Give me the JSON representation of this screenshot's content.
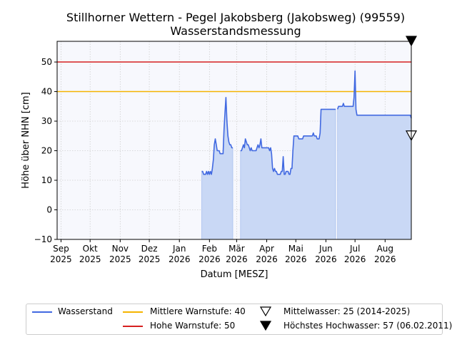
{
  "chart_data": {
    "type": "line",
    "title": "Stillhorner Wettern - Pegel Jakobsberg (Jakobsweg) (99559)",
    "subtitle": "Wasserstandsmessung",
    "xlabel": "Datum [MESZ]",
    "ylabel": "Höhe über NHN [cm]",
    "ylim": [
      -10,
      57
    ],
    "xlim": [
      "2025-08-28",
      "2026-08-28"
    ],
    "grid": true,
    "legend_position": "bottom",
    "y_ticks": [
      "−10",
      "0",
      "10",
      "20",
      "30",
      "40",
      "50"
    ],
    "x_ticks": [
      {
        "date": "2025-09-01",
        "month": "Sep",
        "year": "2025"
      },
      {
        "date": "2025-10-01",
        "month": "Okt",
        "year": "2025"
      },
      {
        "date": "2025-11-01",
        "month": "Nov",
        "year": "2025"
      },
      {
        "date": "2025-12-01",
        "month": "Dez",
        "year": "2025"
      },
      {
        "date": "2026-01-01",
        "month": "Jan",
        "year": "2026"
      },
      {
        "date": "2026-02-01",
        "month": "Feb",
        "year": "2026"
      },
      {
        "date": "2026-03-01",
        "month": "Mär",
        "year": "2026"
      },
      {
        "date": "2026-04-01",
        "month": "Apr",
        "year": "2026"
      },
      {
        "date": "2026-05-01",
        "month": "Mai",
        "year": "2026"
      },
      {
        "date": "2026-06-01",
        "month": "Jun",
        "year": "2026"
      },
      {
        "date": "2026-07-01",
        "month": "Jul",
        "year": "2026"
      },
      {
        "date": "2026-08-01",
        "month": "Aug",
        "year": "2026"
      }
    ],
    "series": [
      {
        "name": "Wasserstand",
        "color": "#4169e1",
        "fill": "#c9d8f5",
        "segments": [
          [
            [
              "2026-01-24",
              13
            ],
            [
              "2026-01-25",
              13
            ],
            [
              "2026-01-26",
              12
            ],
            [
              "2026-01-27",
              12
            ],
            [
              "2026-01-28",
              12
            ],
            [
              "2026-01-29",
              13
            ],
            [
              "2026-01-30",
              12
            ],
            [
              "2026-01-31",
              13
            ],
            [
              "2026-02-01",
              12
            ],
            [
              "2026-02-02",
              13
            ],
            [
              "2026-02-03",
              12
            ],
            [
              "2026-02-04",
              14
            ],
            [
              "2026-02-05",
              17
            ],
            [
              "2026-02-06",
              22
            ],
            [
              "2026-02-07",
              24
            ],
            [
              "2026-02-08",
              22
            ],
            [
              "2026-02-09",
              20
            ],
            [
              "2026-02-10",
              20
            ],
            [
              "2026-02-11",
              20
            ],
            [
              "2026-02-12",
              19
            ],
            [
              "2026-02-13",
              19
            ],
            [
              "2026-02-14",
              19
            ],
            [
              "2026-02-15",
              19
            ],
            [
              "2026-02-16",
              27
            ],
            [
              "2026-02-17",
              33
            ],
            [
              "2026-02-18",
              38
            ],
            [
              "2026-02-19",
              30
            ],
            [
              "2026-02-20",
              25
            ],
            [
              "2026-02-21",
              23
            ],
            [
              "2026-02-22",
              22
            ],
            [
              "2026-02-23",
              22
            ],
            [
              "2026-02-24",
              21
            ],
            [
              "2026-02-25",
              21
            ]
          ],
          [
            [
              "2026-03-05",
              20
            ],
            [
              "2026-03-06",
              20
            ],
            [
              "2026-03-07",
              21
            ],
            [
              "2026-03-08",
              22
            ],
            [
              "2026-03-09",
              21
            ],
            [
              "2026-03-10",
              24
            ],
            [
              "2026-03-11",
              23
            ],
            [
              "2026-03-12",
              22
            ],
            [
              "2026-03-13",
              22
            ],
            [
              "2026-03-14",
              21
            ],
            [
              "2026-03-15",
              20
            ],
            [
              "2026-03-16",
              21
            ],
            [
              "2026-03-17",
              20
            ],
            [
              "2026-03-18",
              20
            ],
            [
              "2026-03-19",
              20
            ],
            [
              "2026-03-20",
              20
            ],
            [
              "2026-03-21",
              20
            ],
            [
              "2026-03-22",
              21
            ],
            [
              "2026-03-23",
              22
            ],
            [
              "2026-03-24",
              21
            ],
            [
              "2026-03-25",
              22
            ],
            [
              "2026-03-26",
              24
            ],
            [
              "2026-03-27",
              21
            ],
            [
              "2026-03-28",
              21
            ],
            [
              "2026-03-29",
              21
            ],
            [
              "2026-03-30",
              21
            ],
            [
              "2026-03-31",
              21
            ],
            [
              "2026-04-01",
              21
            ],
            [
              "2026-04-02",
              21
            ],
            [
              "2026-04-03",
              21
            ],
            [
              "2026-04-04",
              20
            ],
            [
              "2026-04-05",
              21
            ],
            [
              "2026-04-06",
              19
            ],
            [
              "2026-04-07",
              14
            ],
            [
              "2026-04-08",
              13
            ],
            [
              "2026-04-09",
              14
            ],
            [
              "2026-04-10",
              13
            ],
            [
              "2026-04-11",
              13
            ],
            [
              "2026-04-12",
              12
            ],
            [
              "2026-04-13",
              12
            ],
            [
              "2026-04-14",
              12
            ],
            [
              "2026-04-15",
              12
            ],
            [
              "2026-04-16",
              13
            ],
            [
              "2026-04-17",
              13
            ],
            [
              "2026-04-18",
              18
            ],
            [
              "2026-04-19",
              12
            ],
            [
              "2026-04-20",
              12
            ],
            [
              "2026-04-21",
              13
            ],
            [
              "2026-04-22",
              13
            ],
            [
              "2026-04-23",
              13
            ],
            [
              "2026-04-24",
              12
            ],
            [
              "2026-04-25",
              12
            ],
            [
              "2026-04-26",
              14
            ],
            [
              "2026-04-27",
              14
            ],
            [
              "2026-04-28",
              20
            ],
            [
              "2026-04-29",
              25
            ],
            [
              "2026-04-30",
              25
            ],
            [
              "2026-05-01",
              25
            ],
            [
              "2026-05-02",
              25
            ],
            [
              "2026-05-03",
              25
            ],
            [
              "2026-05-04",
              24
            ],
            [
              "2026-05-05",
              24
            ],
            [
              "2026-05-06",
              24
            ],
            [
              "2026-05-07",
              24
            ],
            [
              "2026-05-08",
              24
            ],
            [
              "2026-05-09",
              25
            ],
            [
              "2026-05-10",
              25
            ],
            [
              "2026-05-11",
              25
            ],
            [
              "2026-05-12",
              25
            ],
            [
              "2026-05-13",
              25
            ],
            [
              "2026-05-14",
              25
            ],
            [
              "2026-05-15",
              25
            ],
            [
              "2026-05-16",
              25
            ],
            [
              "2026-05-17",
              25
            ],
            [
              "2026-05-18",
              25
            ],
            [
              "2026-05-19",
              26
            ],
            [
              "2026-05-20",
              25
            ],
            [
              "2026-05-21",
              25
            ],
            [
              "2026-05-22",
              25
            ],
            [
              "2026-05-23",
              24
            ],
            [
              "2026-05-24",
              24
            ],
            [
              "2026-05-25",
              24
            ],
            [
              "2026-05-26",
              26
            ],
            [
              "2026-05-27",
              34
            ],
            [
              "2026-05-28",
              34
            ],
            [
              "2026-06-01",
              34
            ],
            [
              "2026-06-05",
              34
            ],
            [
              "2026-06-10",
              34
            ],
            [
              "2026-06-11",
              34
            ]
          ],
          [
            [
              "2026-06-13",
              34
            ],
            [
              "2026-06-14",
              35
            ],
            [
              "2026-06-15",
              35
            ],
            [
              "2026-06-16",
              35
            ],
            [
              "2026-06-17",
              35
            ],
            [
              "2026-06-18",
              35
            ],
            [
              "2026-06-19",
              36
            ],
            [
              "2026-06-20",
              35
            ],
            [
              "2026-06-22",
              35
            ],
            [
              "2026-06-25",
              35
            ],
            [
              "2026-06-29",
              35
            ],
            [
              "2026-06-30",
              38
            ],
            [
              "2026-07-01",
              47
            ],
            [
              "2026-07-02",
              34
            ],
            [
              "2026-07-03",
              32
            ],
            [
              "2026-07-05",
              32
            ],
            [
              "2026-07-10",
              32
            ],
            [
              "2026-07-15",
              32
            ],
            [
              "2026-07-20",
              32
            ],
            [
              "2026-07-25",
              32
            ],
            [
              "2026-08-01",
              32
            ],
            [
              "2026-08-05",
              32
            ],
            [
              "2026-08-10",
              32
            ],
            [
              "2026-08-15",
              32
            ],
            [
              "2026-08-20",
              32
            ],
            [
              "2026-08-25",
              32
            ],
            [
              "2026-08-27",
              32
            ],
            [
              "2026-08-28",
              31
            ]
          ]
        ]
      }
    ],
    "reference_lines": [
      {
        "name": "Mittlere Warnstufe: 40",
        "value": 40,
        "color": "#f5b400"
      },
      {
        "name": "Hohe Warnstufe: 50",
        "value": 50,
        "color": "#d62020"
      }
    ],
    "markers": [
      {
        "name": "Mittelwasser: 25 (2014-2025)",
        "value": 25,
        "symbol": "open-triangle-down"
      },
      {
        "name": "Höchstes Hochwasser: 57 (06.02.2011)",
        "value": 57,
        "symbol": "filled-triangle-down"
      }
    ]
  }
}
